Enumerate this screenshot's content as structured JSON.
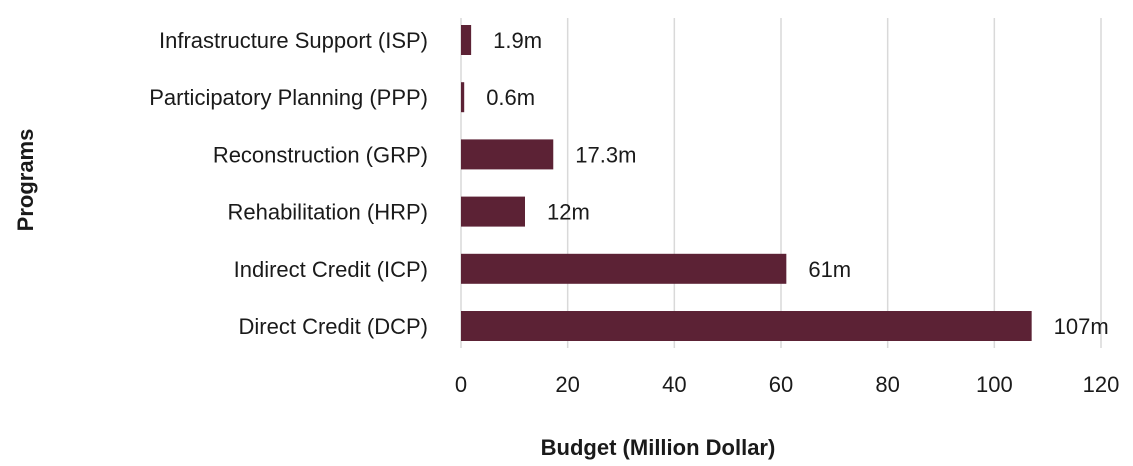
{
  "chart_data": {
    "type": "bar",
    "orientation": "horizontal",
    "categories": [
      "Infrastructure Support (ISP)",
      "Participatory Planning (PPP)",
      "Reconstruction (GRP)",
      "Rehabilitation (HRP)",
      "Indirect Credit (ICP)",
      "Direct Credit (DCP)"
    ],
    "values": [
      1.9,
      0.6,
      17.3,
      12,
      61,
      107
    ],
    "data_labels": [
      "1.9m",
      "0.6m",
      "17.3m",
      "12m",
      "61m",
      "107m"
    ],
    "xlabel": "Budget (Million Dollar)",
    "ylabel": "Programs",
    "xlim": [
      0,
      120
    ],
    "xticks": [
      0,
      20,
      40,
      60,
      80,
      100,
      120
    ],
    "grid": "vertical",
    "legend": "none",
    "bar_color": "#5c2235"
  }
}
